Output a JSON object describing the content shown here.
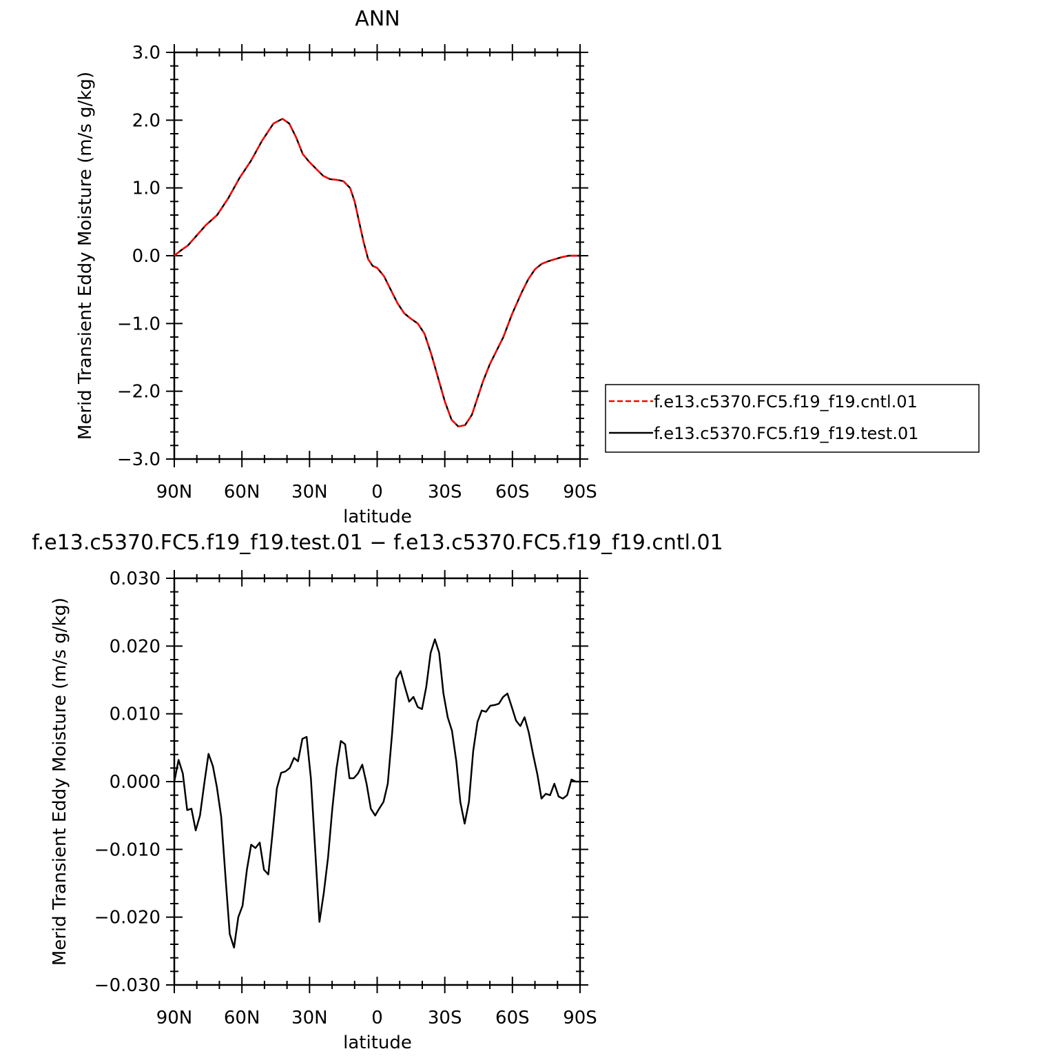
{
  "chart_data": [
    {
      "type": "line",
      "title": "ANN",
      "xlabel": "latitude",
      "ylabel": "Merid Transient Eddy Moisture (m/s g/kg)",
      "xlim": [
        90,
        -90
      ],
      "ylim": [
        -3.0,
        3.0
      ],
      "xticks": [
        90,
        60,
        30,
        0,
        -30,
        -60,
        -90
      ],
      "xtick_labels": [
        "90N",
        "60N",
        "30N",
        "0",
        "30S",
        "60S",
        "90S"
      ],
      "yticks": [
        -3.0,
        -2.0,
        -1.0,
        0.0,
        1.0,
        2.0,
        3.0
      ],
      "ytick_labels": [
        "−3.0",
        "−2.0",
        "−1.0",
        "0.0",
        "1.0",
        "2.0",
        "3.0"
      ],
      "legend": {
        "placement": "right",
        "entries": [
          {
            "label": "f.e13.c5370.FC5.f19_f19.cntl.01",
            "color": "#ff0000",
            "dash": "dashed"
          },
          {
            "label": "f.e13.c5370.FC5.f19_f19.test.01",
            "color": "#000000",
            "dash": "solid"
          }
        ]
      },
      "x": [
        90,
        87,
        84,
        80,
        76,
        71,
        66,
        61,
        56,
        51,
        46,
        42,
        39,
        36,
        33,
        30,
        27,
        24,
        21,
        18,
        15,
        12,
        10,
        8,
        6,
        4,
        2,
        0,
        -3,
        -6,
        -9,
        -12,
        -15,
        -18,
        -21,
        -24,
        -27,
        -30,
        -33,
        -36,
        -39,
        -42,
        -44,
        -47,
        -50,
        -53,
        -56,
        -60,
        -64,
        -67,
        -70,
        -73,
        -76,
        -79,
        -82,
        -85,
        -88,
        -90
      ],
      "series": [
        {
          "name": "f.e13.c5370.FC5.f19_f19.cntl.01",
          "color": "#ff0000",
          "dash": "dashed",
          "values": [
            0.0,
            0.08,
            0.15,
            0.3,
            0.45,
            0.6,
            0.85,
            1.15,
            1.4,
            1.7,
            1.95,
            2.02,
            1.95,
            1.75,
            1.5,
            1.38,
            1.28,
            1.18,
            1.13,
            1.12,
            1.1,
            1.0,
            0.8,
            0.5,
            0.2,
            -0.05,
            -0.15,
            -0.18,
            -0.3,
            -0.5,
            -0.7,
            -0.85,
            -0.93,
            -1.0,
            -1.15,
            -1.45,
            -1.8,
            -2.15,
            -2.42,
            -2.52,
            -2.5,
            -2.35,
            -2.15,
            -1.85,
            -1.6,
            -1.4,
            -1.2,
            -0.85,
            -0.55,
            -0.35,
            -0.2,
            -0.12,
            -0.08,
            -0.05,
            -0.02,
            0.0,
            0.0,
            0.0
          ]
        },
        {
          "name": "f.e13.c5370.FC5.f19_f19.test.01",
          "color": "#000000",
          "dash": "solid",
          "values": [
            0.0,
            0.08,
            0.15,
            0.3,
            0.45,
            0.6,
            0.85,
            1.15,
            1.4,
            1.7,
            1.95,
            2.02,
            1.95,
            1.75,
            1.5,
            1.38,
            1.28,
            1.18,
            1.13,
            1.12,
            1.1,
            1.0,
            0.8,
            0.5,
            0.2,
            -0.05,
            -0.15,
            -0.18,
            -0.3,
            -0.5,
            -0.7,
            -0.85,
            -0.93,
            -1.0,
            -1.15,
            -1.45,
            -1.8,
            -2.15,
            -2.42,
            -2.52,
            -2.5,
            -2.35,
            -2.15,
            -1.85,
            -1.6,
            -1.4,
            -1.2,
            -0.85,
            -0.55,
            -0.35,
            -0.2,
            -0.12,
            -0.08,
            -0.05,
            -0.02,
            0.0,
            0.0,
            0.0
          ]
        }
      ]
    },
    {
      "type": "line",
      "title": "f.e13.c5370.FC5.f19_f19.test.01 − f.e13.c5370.FC5.f19_f19.cntl.01",
      "xlabel": "latitude",
      "ylabel": "Merid Transient Eddy Moisture (m/s g/kg)",
      "xlim": [
        90,
        -90
      ],
      "ylim": [
        -0.03,
        0.03
      ],
      "xticks": [
        90,
        60,
        30,
        0,
        -30,
        -60,
        -90
      ],
      "xtick_labels": [
        "90N",
        "60N",
        "30N",
        "0",
        "30S",
        "60S",
        "90S"
      ],
      "yticks": [
        -0.03,
        -0.02,
        -0.01,
        0.0,
        0.01,
        0.02,
        0.03
      ],
      "ytick_labels": [
        "−0.030",
        "−0.020",
        "−0.010",
        "0.000",
        "0.010",
        "0.020",
        "0.030"
      ],
      "x": [
        90.0,
        88.1,
        86.2,
        84.3,
        82.4,
        80.5,
        78.6,
        76.7,
        74.8,
        72.9,
        71.1,
        69.2,
        67.3,
        65.4,
        63.5,
        61.6,
        59.7,
        57.8,
        55.9,
        54.0,
        52.1,
        50.2,
        48.3,
        46.4,
        44.5,
        42.6,
        40.7,
        38.8,
        36.9,
        35.1,
        33.2,
        31.3,
        29.4,
        27.5,
        25.6,
        23.7,
        21.8,
        19.9,
        18.0,
        16.1,
        14.2,
        12.3,
        10.4,
        8.5,
        6.6,
        4.7,
        2.8,
        0.9,
        -0.9,
        -2.8,
        -4.7,
        -6.6,
        -8.5,
        -10.4,
        -12.3,
        -14.2,
        -16.1,
        -18.0,
        -19.9,
        -21.8,
        -23.7,
        -25.6,
        -27.5,
        -29.4,
        -31.3,
        -33.2,
        -35.1,
        -36.9,
        -38.8,
        -40.7,
        -42.6,
        -44.5,
        -46.4,
        -48.3,
        -50.2,
        -52.1,
        -54.0,
        -55.9,
        -57.8,
        -59.7,
        -61.6,
        -63.5,
        -65.4,
        -67.3,
        -69.2,
        -71.1,
        -72.9,
        -74.8,
        -76.7,
        -78.6,
        -80.5,
        -82.4,
        -84.3,
        -86.2,
        -88.1,
        -90.0
      ],
      "series": [
        {
          "name": "",
          "color": "#000000",
          "dash": "solid",
          "values": [
            0.0,
            0.0032,
            0.0012,
            -0.0042,
            -0.004,
            -0.0072,
            -0.005,
            -0.0003,
            0.0041,
            0.0023,
            -0.0008,
            -0.0052,
            -0.014,
            -0.0225,
            -0.0245,
            -0.02,
            -0.0183,
            -0.013,
            -0.0093,
            -0.0098,
            -0.009,
            -0.013,
            -0.0137,
            -0.0075,
            -0.001,
            0.0013,
            0.0015,
            0.002,
            0.0035,
            0.003,
            0.0063,
            0.0066,
            0.0005,
            -0.01,
            -0.0207,
            -0.0165,
            -0.0112,
            -0.004,
            0.002,
            0.006,
            0.0055,
            0.0005,
            0.0005,
            0.0012,
            0.0025,
            -0.0003,
            -0.004,
            -0.005,
            -0.004,
            -0.003,
            -0.0003,
            0.007,
            0.0152,
            0.0163,
            0.014,
            0.0118,
            0.0125,
            0.011,
            0.0107,
            0.014,
            0.019,
            0.021,
            0.019,
            0.013,
            0.0095,
            0.0075,
            0.003,
            -0.003,
            -0.0062,
            -0.003,
            0.0045,
            0.0088,
            0.0105,
            0.0103,
            0.0112,
            0.0113,
            0.0115,
            0.0125,
            0.013,
            0.011,
            0.009,
            0.0082,
            0.0095,
            0.0072,
            0.004,
            0.001,
            -0.0025,
            -0.0018,
            -0.002,
            -0.0003,
            -0.0022,
            -0.0025,
            -0.002,
            0.0003,
            0.0,
            0.0
          ]
        }
      ]
    }
  ]
}
